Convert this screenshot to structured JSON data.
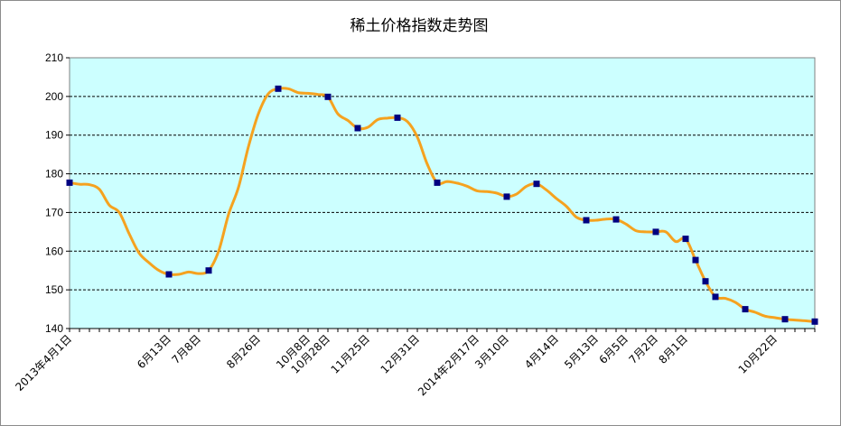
{
  "chart_data": {
    "type": "line",
    "title": "稀土价格指数走势图",
    "xlabel": "",
    "ylabel": "",
    "ylim": [
      140,
      210
    ],
    "yticks": [
      140,
      150,
      160,
      170,
      180,
      190,
      200,
      210
    ],
    "grid": true,
    "legend": "none",
    "x_tick_labels": [
      {
        "label": "2013年4月1日",
        "index": 0
      },
      {
        "label": "6月13日",
        "index": 10
      },
      {
        "label": "7月8日",
        "index": 13
      },
      {
        "label": "8月26日",
        "index": 19
      },
      {
        "label": "10月8日",
        "index": 24
      },
      {
        "label": "10月28日",
        "index": 26
      },
      {
        "label": "11月25日",
        "index": 30
      },
      {
        "label": "12月31日",
        "index": 35
      },
      {
        "label": "2014年2月17日",
        "index": 41
      },
      {
        "label": "3月10日",
        "index": 44
      },
      {
        "label": "4月14日",
        "index": 49
      },
      {
        "label": "5月13日",
        "index": 53
      },
      {
        "label": "6月5日",
        "index": 56
      },
      {
        "label": "7月2日",
        "index": 59
      },
      {
        "label": "8月1日",
        "index": 62
      },
      {
        "label": "10月22日",
        "index": 71
      }
    ],
    "series": [
      {
        "line_color": "#f5a21f",
        "marker_color": "#000080",
        "points": [
          [
            0,
            177.7
          ],
          [
            1,
            177.3
          ],
          [
            2,
            177.2
          ],
          [
            3,
            176.0
          ],
          [
            4,
            171.9
          ],
          [
            5,
            170.0
          ],
          [
            6,
            164.5
          ],
          [
            7,
            159.5
          ],
          [
            8,
            157.0
          ],
          [
            9,
            155.0
          ],
          [
            10,
            154.0
          ],
          [
            11,
            154.0
          ],
          [
            12,
            154.6
          ],
          [
            13,
            154.2
          ],
          [
            14,
            155.0
          ],
          [
            15,
            160.0
          ],
          [
            16,
            169.5
          ],
          [
            17,
            176.5
          ],
          [
            18,
            187.0
          ],
          [
            19,
            195.5
          ],
          [
            20,
            200.7
          ],
          [
            21,
            202.0
          ],
          [
            22,
            202.0
          ],
          [
            23,
            201.0
          ],
          [
            24,
            200.8
          ],
          [
            25,
            200.5
          ],
          [
            26,
            199.9
          ],
          [
            27,
            195.5
          ],
          [
            28,
            193.8
          ],
          [
            29,
            191.8
          ],
          [
            30,
            192.0
          ],
          [
            31,
            194.0
          ],
          [
            32,
            194.4
          ],
          [
            33,
            194.5
          ],
          [
            34,
            193.5
          ],
          [
            35,
            189.5
          ],
          [
            36,
            182.5
          ],
          [
            37,
            177.7
          ],
          [
            38,
            178.0
          ],
          [
            39,
            177.6
          ],
          [
            40,
            176.8
          ],
          [
            41,
            175.6
          ],
          [
            42,
            175.4
          ],
          [
            43,
            175.0
          ],
          [
            44,
            174.1
          ],
          [
            45,
            174.8
          ],
          [
            46,
            176.8
          ],
          [
            47,
            177.4
          ],
          [
            48,
            175.8
          ],
          [
            49,
            173.6
          ],
          [
            50,
            171.6
          ],
          [
            51,
            168.8
          ],
          [
            52,
            168.0
          ],
          [
            53,
            168.0
          ],
          [
            54,
            168.3
          ],
          [
            55,
            168.2
          ],
          [
            56,
            167.0
          ],
          [
            57,
            165.3
          ],
          [
            58,
            165.0
          ],
          [
            59,
            165.0
          ],
          [
            60,
            165.0
          ],
          [
            61,
            162.5
          ],
          [
            62,
            163.2
          ],
          [
            63,
            157.7
          ],
          [
            64,
            152.2
          ],
          [
            65,
            148.2
          ],
          [
            66,
            147.8
          ],
          [
            67,
            146.8
          ],
          [
            68,
            145.0
          ],
          [
            69,
            144.2
          ],
          [
            70,
            143.2
          ],
          [
            71,
            142.8
          ],
          [
            72,
            142.4
          ],
          [
            73,
            142.2
          ],
          [
            74,
            142.0
          ],
          [
            75,
            141.8
          ]
        ],
        "marked_indices": [
          0,
          10,
          14,
          21,
          26,
          29,
          33,
          37,
          44,
          47,
          52,
          55,
          59,
          62,
          63,
          64,
          65,
          68,
          72,
          75
        ]
      }
    ]
  }
}
